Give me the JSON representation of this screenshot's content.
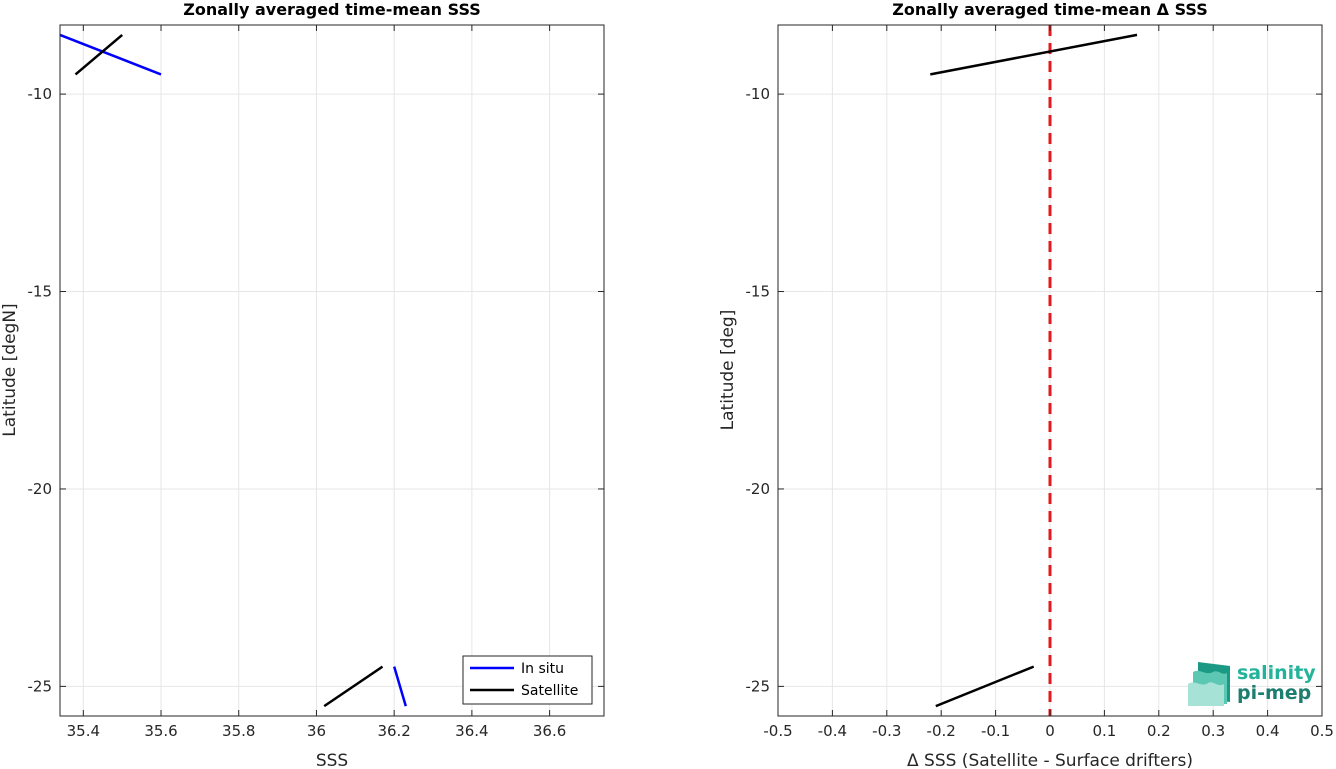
{
  "chart_data": [
    {
      "type": "line",
      "title": "Zonally averaged time-mean SSS",
      "xlabel": "SSS",
      "ylabel": "Latitude [degN]",
      "xlim": [
        35.34,
        36.74
      ],
      "ylim": [
        -25.75,
        -8.25
      ],
      "xticks": [
        35.4,
        35.6,
        35.8,
        36.0,
        36.2,
        36.4,
        36.6
      ],
      "xtick_labels": [
        "35.4",
        "35.6",
        "35.8",
        "36",
        "36.2",
        "36.4",
        "36.6"
      ],
      "yticks": [
        -10,
        -15,
        -20,
        -25
      ],
      "ytick_labels": [
        "-10",
        "-15",
        "-20",
        "-25"
      ],
      "grid": true,
      "legend_position": "bottom-right",
      "series": [
        {
          "name": "In situ",
          "color": "#0000ff",
          "segments": [
            [
              [
                35.34,
                -8.5
              ],
              [
                35.6,
                -9.5
              ]
            ],
            [
              [
                36.2,
                -24.5
              ],
              [
                36.23,
                -25.5
              ]
            ]
          ]
        },
        {
          "name": "Satellite",
          "color": "#000000",
          "segments": [
            [
              [
                35.38,
                -9.5
              ],
              [
                35.5,
                -8.5
              ]
            ],
            [
              [
                36.02,
                -25.5
              ],
              [
                36.17,
                -24.5
              ]
            ]
          ]
        }
      ]
    },
    {
      "type": "line",
      "title": "Zonally averaged time-mean Δ SSS",
      "xlabel": "Δ SSS (Satellite - Surface drifters)",
      "ylabel": "Latitude [deg]",
      "xlim": [
        -0.5,
        0.5
      ],
      "ylim": [
        -25.75,
        -8.25
      ],
      "xticks": [
        -0.5,
        -0.4,
        -0.3,
        -0.2,
        -0.1,
        0,
        0.1,
        0.2,
        0.3,
        0.4,
        0.5
      ],
      "xtick_labels": [
        "-0.5",
        "-0.4",
        "-0.3",
        "-0.2",
        "-0.1",
        "0",
        "0.1",
        "0.2",
        "0.3",
        "0.4",
        "0.5"
      ],
      "yticks": [
        -10,
        -15,
        -20,
        -25
      ],
      "ytick_labels": [
        "-10",
        "-15",
        "-20",
        "-25"
      ],
      "grid": true,
      "reference_line": {
        "x": 0,
        "color": "#e31a1c",
        "style": "dashed"
      },
      "series": [
        {
          "color": "#000000",
          "segments": [
            [
              [
                -0.22,
                -9.5
              ],
              [
                0.16,
                -8.5
              ]
            ],
            [
              [
                -0.21,
                -25.5
              ],
              [
                -0.03,
                -24.5
              ]
            ]
          ]
        }
      ]
    }
  ],
  "logo": {
    "line1": "salinity",
    "line2": "pi-mep"
  }
}
